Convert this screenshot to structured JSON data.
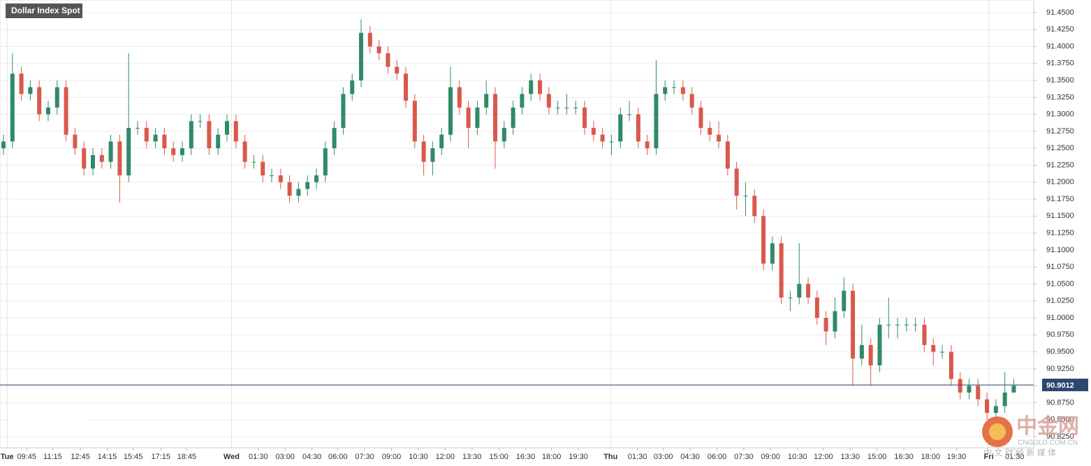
{
  "chart_data": {
    "type": "candlestick",
    "title": "Dollar Index Spot",
    "ylim": [
      90.8085,
      91.4685
    ],
    "yticks": [
      {
        "value": 90.825,
        "label": "90.8250"
      },
      {
        "value": 90.85,
        "label": "90.8500"
      },
      {
        "value": 90.875,
        "label": "90.8750"
      },
      {
        "value": 90.9,
        "label": "90.9000"
      },
      {
        "value": 90.925,
        "label": "90.9250"
      },
      {
        "value": 90.95,
        "label": "90.9500"
      },
      {
        "value": 90.975,
        "label": "90.9750"
      },
      {
        "value": 91,
        "label": "91.0000"
      },
      {
        "value": 91.025,
        "label": "91.0250"
      },
      {
        "value": 91.05,
        "label": "91.0500"
      },
      {
        "value": 91.075,
        "label": "91.0750"
      },
      {
        "value": 91.1,
        "label": "91.1000"
      },
      {
        "value": 91.125,
        "label": "91.1250"
      },
      {
        "value": 91.15,
        "label": "91.1500"
      },
      {
        "value": 91.175,
        "label": "91.1750"
      },
      {
        "value": 91.2,
        "label": "91.2000"
      },
      {
        "value": 91.225,
        "label": "91.2250"
      },
      {
        "value": 91.25,
        "label": "91.2500"
      },
      {
        "value": 91.275,
        "label": "91.2750"
      },
      {
        "value": 91.3,
        "label": "91.3000"
      },
      {
        "value": 91.325,
        "label": "91.3250"
      },
      {
        "value": 91.35,
        "label": "91.3500"
      },
      {
        "value": 91.375,
        "label": "91.3750"
      },
      {
        "value": 91.4,
        "label": "91.4000"
      },
      {
        "value": 91.425,
        "label": "91.4250"
      },
      {
        "value": 91.45,
        "label": "91.4500"
      }
    ],
    "xlim": [
      -0.39,
      115.23
    ],
    "day_ticks": [
      {
        "value": 0.4,
        "label": "Tue"
      },
      {
        "value": 25.5,
        "label": "Wed"
      },
      {
        "value": 67.9,
        "label": "Thu"
      },
      {
        "value": 110.2,
        "label": "Fri"
      }
    ],
    "xticks": [
      {
        "value": 2.6,
        "label": "09:45"
      },
      {
        "value": 5.5,
        "label": "11:15"
      },
      {
        "value": 8.6,
        "label": "12:45"
      },
      {
        "value": 11.6,
        "label": "14:15"
      },
      {
        "value": 14.5,
        "label": "15:45"
      },
      {
        "value": 17.6,
        "label": "17:15"
      },
      {
        "value": 20.5,
        "label": "18:45"
      },
      {
        "value": 28.5,
        "label": "01:30"
      },
      {
        "value": 31.5,
        "label": "03:00"
      },
      {
        "value": 34.5,
        "label": "04:30"
      },
      {
        "value": 37.4,
        "label": "06:00"
      },
      {
        "value": 40.4,
        "label": "07:30"
      },
      {
        "value": 43.4,
        "label": "09:00"
      },
      {
        "value": 46.4,
        "label": "10:30"
      },
      {
        "value": 49.4,
        "label": "12:00"
      },
      {
        "value": 52.4,
        "label": "13:30"
      },
      {
        "value": 55.4,
        "label": "15:00"
      },
      {
        "value": 58.4,
        "label": "16:30"
      },
      {
        "value": 61.3,
        "label": "18:00"
      },
      {
        "value": 64.3,
        "label": "19:30"
      },
      {
        "value": 70.9,
        "label": "01:30"
      },
      {
        "value": 73.8,
        "label": "03:00"
      },
      {
        "value": 76.8,
        "label": "04:30"
      },
      {
        "value": 79.8,
        "label": "06:00"
      },
      {
        "value": 82.8,
        "label": "07:30"
      },
      {
        "value": 85.8,
        "label": "09:00"
      },
      {
        "value": 88.8,
        "label": "10:30"
      },
      {
        "value": 91.7,
        "label": "12:00"
      },
      {
        "value": 94.7,
        "label": "13:30"
      },
      {
        "value": 97.7,
        "label": "15:00"
      },
      {
        "value": 100.7,
        "label": "16:30"
      },
      {
        "value": 103.7,
        "label": "18:00"
      },
      {
        "value": 106.6,
        "label": "19:30"
      },
      {
        "value": 113.1,
        "label": "01:30"
      }
    ],
    "grid": true,
    "up_color": "#2f8a68",
    "down_color": "#d9584c",
    "open": [
      91.25,
      91.26,
      91.36,
      91.33,
      91.34,
      91.3,
      91.31,
      91.34,
      91.27,
      91.25,
      91.22,
      91.24,
      91.23,
      91.26,
      91.21,
      91.28,
      91.28,
      91.26,
      91.27,
      91.25,
      91.24,
      91.25,
      91.29,
      91.29,
      91.25,
      91.27,
      91.29,
      91.26,
      91.23,
      91.23,
      91.21,
      91.21,
      91.2,
      91.18,
      91.19,
      91.2,
      91.21,
      91.25,
      91.28,
      91.33,
      91.35,
      91.42,
      91.4,
      91.39,
      91.37,
      91.36,
      91.32,
      91.26,
      91.23,
      91.25,
      91.27,
      91.34,
      91.31,
      91.28,
      91.31,
      91.33,
      91.26,
      91.28,
      91.31,
      91.33,
      91.35,
      91.33,
      91.31,
      91.31,
      91.31,
      91.31,
      91.28,
      91.27,
      91.26,
      91.26,
      91.3,
      91.3,
      91.26,
      91.25,
      91.33,
      91.34,
      91.34,
      91.33,
      91.31,
      91.28,
      91.27,
      91.26,
      91.22,
      91.18,
      91.18,
      91.15,
      91.08,
      91.11,
      91.03,
      91.03,
      91.05,
      91.03,
      91.0,
      90.98,
      91.01,
      91.04,
      90.94,
      90.96,
      90.93,
      90.99,
      90.99,
      90.99,
      90.99,
      90.99,
      90.96,
      90.95,
      90.95,
      90.91,
      90.89,
      90.9,
      90.88,
      90.86,
      90.87,
      90.89
    ],
    "high": [
      91.27,
      91.39,
      91.37,
      91.35,
      91.35,
      91.32,
      91.35,
      91.35,
      91.28,
      91.26,
      91.25,
      91.25,
      91.27,
      91.27,
      91.39,
      91.29,
      91.29,
      91.28,
      91.28,
      91.26,
      91.26,
      91.3,
      91.3,
      91.3,
      91.28,
      91.3,
      91.3,
      91.27,
      91.24,
      91.24,
      91.22,
      91.22,
      91.21,
      91.2,
      91.21,
      91.22,
      91.26,
      91.29,
      91.34,
      91.36,
      91.44,
      91.43,
      91.41,
      91.4,
      91.38,
      91.37,
      91.33,
      91.27,
      91.26,
      91.28,
      91.37,
      91.35,
      91.32,
      91.32,
      91.35,
      91.34,
      91.29,
      91.32,
      91.34,
      91.36,
      91.36,
      91.34,
      91.32,
      91.33,
      91.32,
      91.32,
      91.29,
      91.28,
      91.27,
      91.31,
      91.32,
      91.31,
      91.27,
      91.38,
      91.35,
      91.35,
      91.35,
      91.34,
      91.32,
      91.29,
      91.29,
      91.27,
      91.23,
      91.2,
      91.19,
      91.16,
      91.12,
      91.12,
      91.04,
      91.11,
      91.06,
      91.04,
      91.01,
      91.03,
      91.06,
      91.05,
      90.99,
      90.97,
      91.0,
      91.03,
      91.0,
      91.0,
      91.0,
      91.0,
      90.97,
      90.96,
      90.96,
      90.92,
      90.91,
      90.91,
      90.89,
      90.88,
      90.92,
      90.91
    ],
    "low": [
      91.24,
      91.25,
      91.32,
      91.32,
      91.29,
      91.29,
      91.3,
      91.26,
      91.24,
      91.21,
      91.21,
      91.22,
      91.22,
      91.17,
      91.2,
      91.27,
      91.25,
      91.25,
      91.24,
      91.23,
      91.23,
      91.24,
      91.28,
      91.24,
      91.24,
      91.26,
      91.25,
      91.22,
      91.22,
      91.2,
      91.2,
      91.19,
      91.17,
      91.17,
      91.18,
      91.19,
      91.2,
      91.24,
      91.27,
      91.32,
      91.34,
      91.39,
      91.38,
      91.36,
      91.35,
      91.31,
      91.25,
      91.21,
      91.21,
      91.24,
      91.26,
      91.3,
      91.25,
      91.27,
      91.3,
      91.22,
      91.25,
      91.27,
      91.3,
      91.32,
      91.32,
      91.3,
      91.3,
      91.3,
      91.3,
      91.27,
      91.26,
      91.25,
      91.24,
      91.25,
      91.29,
      91.25,
      91.24,
      91.24,
      91.32,
      91.33,
      91.32,
      91.3,
      91.27,
      91.26,
      91.25,
      91.21,
      91.16,
      91.15,
      91.14,
      91.07,
      91.07,
      91.02,
      91.01,
      91.02,
      91.02,
      90.99,
      90.96,
      90.97,
      91.0,
      90.9,
      90.93,
      90.9,
      90.92,
      90.97,
      90.97,
      90.98,
      90.98,
      90.95,
      90.93,
      90.94,
      90.9,
      90.88,
      90.88,
      90.87,
      90.85,
      90.85,
      90.86,
      90.89
    ],
    "close": [
      91.26,
      91.36,
      91.33,
      91.34,
      91.3,
      91.31,
      91.34,
      91.27,
      91.25,
      91.22,
      91.24,
      91.23,
      91.26,
      91.21,
      91.28,
      91.28,
      91.26,
      91.27,
      91.25,
      91.24,
      91.25,
      91.29,
      91.29,
      91.25,
      91.27,
      91.29,
      91.26,
      91.23,
      91.23,
      91.21,
      91.21,
      91.2,
      91.18,
      91.19,
      91.2,
      91.21,
      91.25,
      91.28,
      91.33,
      91.35,
      91.42,
      91.4,
      91.39,
      91.37,
      91.36,
      91.32,
      91.26,
      91.23,
      91.25,
      91.27,
      91.34,
      91.31,
      91.28,
      91.31,
      91.33,
      91.26,
      91.28,
      91.31,
      91.33,
      91.35,
      91.33,
      91.31,
      91.31,
      91.31,
      91.31,
      91.28,
      91.27,
      91.26,
      91.26,
      91.3,
      91.3,
      91.26,
      91.25,
      91.33,
      91.34,
      91.34,
      91.33,
      91.31,
      91.28,
      91.27,
      91.26,
      91.22,
      91.18,
      91.18,
      91.15,
      91.08,
      91.11,
      91.03,
      91.03,
      91.05,
      91.03,
      91.0,
      90.98,
      91.01,
      91.04,
      90.94,
      90.96,
      90.93,
      90.99,
      90.99,
      90.99,
      90.99,
      90.99,
      90.96,
      90.95,
      90.95,
      90.91,
      90.89,
      90.9,
      90.88,
      90.86,
      90.87,
      90.89,
      90.9
    ],
    "last_price": 90.9012,
    "last_price_color": "#2c4770",
    "watermark": {
      "logo": "中金网",
      "domain": "CNGOLD.COM.CN",
      "tagline": "中 文 财 经 新 媒 体"
    }
  }
}
